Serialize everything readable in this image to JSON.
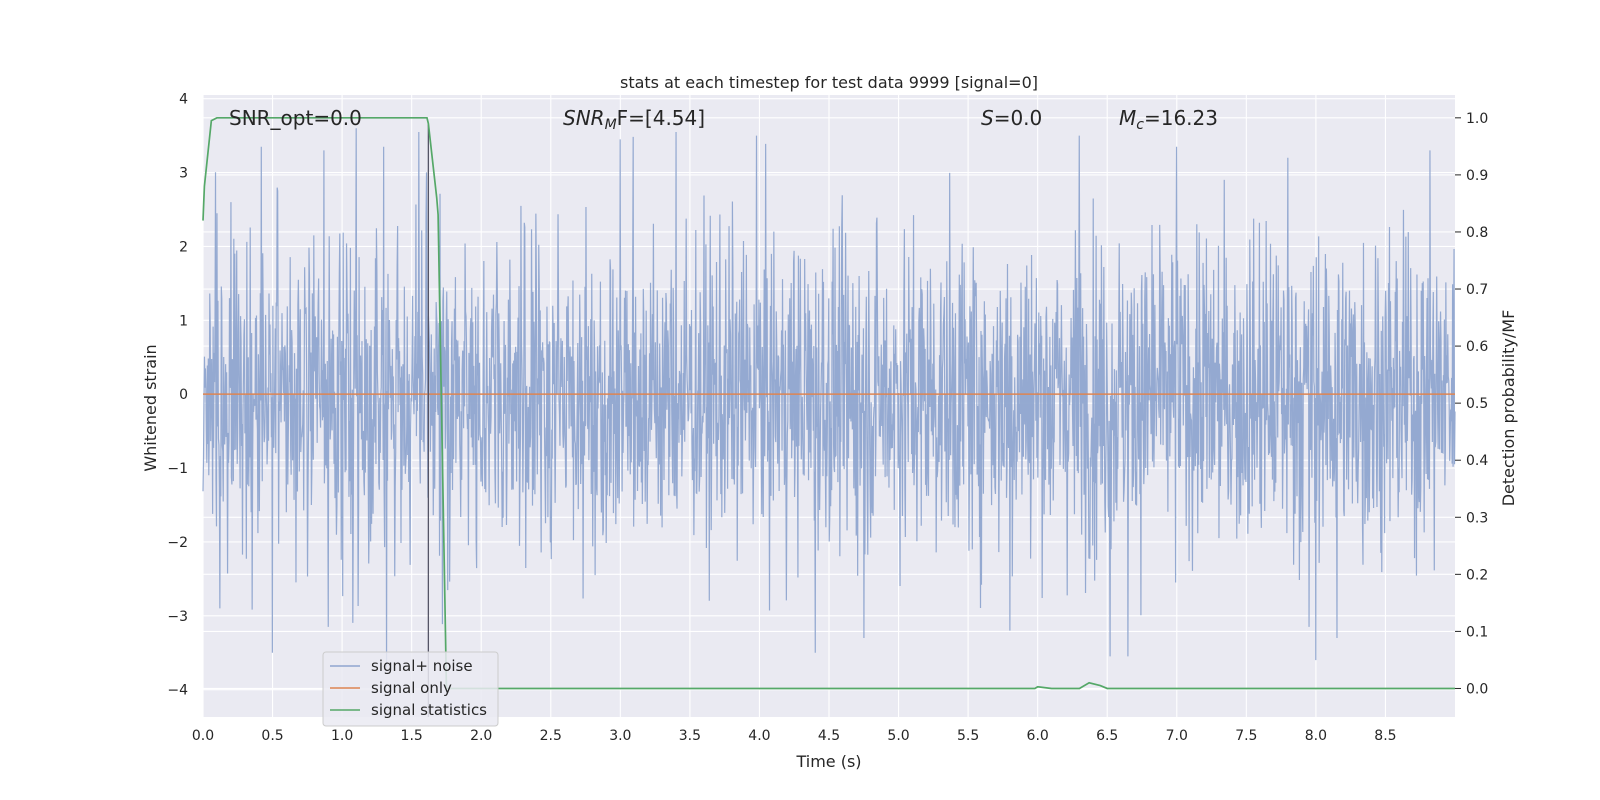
{
  "chart_data": {
    "type": "line",
    "title": "stats at each timestep for test data 9999 [signal=0]",
    "xlabel": "Time (s)",
    "ylabel": "Whitened strain",
    "y2label": "Detection probability/MF",
    "xlim": [
      0.0,
      9.0
    ],
    "ylim": [
      -4.37,
      4.05
    ],
    "y2lim": [
      -0.05,
      1.04
    ],
    "grid": true,
    "legend_position": "lower-left",
    "x_ticks": [
      "0.0",
      "0.5",
      "1.0",
      "1.5",
      "2.0",
      "2.5",
      "3.0",
      "3.5",
      "4.0",
      "4.5",
      "5.0",
      "5.5",
      "6.0",
      "6.5",
      "7.0",
      "7.5",
      "8.0",
      "8.5"
    ],
    "x_tick_values": [
      0.0,
      0.5,
      1.0,
      1.5,
      2.0,
      2.5,
      3.0,
      3.5,
      4.0,
      4.5,
      5.0,
      5.5,
      6.0,
      6.5,
      7.0,
      7.5,
      8.0,
      8.5
    ],
    "y_ticks": [
      "4",
      "3",
      "2",
      "1",
      "0",
      "−1",
      "−2",
      "−3",
      "−4"
    ],
    "y_tick_values": [
      4,
      3,
      2,
      1,
      0,
      -1,
      -2,
      -3,
      -4
    ],
    "y2_ticks": [
      "1.0",
      "0.9",
      "0.8",
      "0.7",
      "0.6",
      "0.5",
      "0.4",
      "0.3",
      "0.2",
      "0.1",
      "0.0"
    ],
    "y2_tick_values": [
      1.0,
      0.9,
      0.8,
      0.7,
      0.6,
      0.5,
      0.4,
      0.3,
      0.2,
      0.1,
      0.0
    ],
    "annotations": {
      "snr_opt": "SNR_opt=0.0",
      "snr_mf_label": "SNR",
      "snr_mf_sub": "M",
      "snr_mf_rest": "F=[4.54]",
      "s_label": "S",
      "s_rest": "=0.0",
      "mc_label": "M",
      "mc_sub": "c",
      "mc_rest": "=16.23"
    },
    "vline_x": 1.62,
    "series": [
      {
        "name": "signal+ noise",
        "color": "#8fa5cf",
        "axis": "left",
        "description": "whitened noise-only strain, roughly Gaussian, peaks near ±3.5",
        "peaks": [
          {
            "x": 0.1,
            "y": 2.45
          },
          {
            "x": 0.12,
            "y": -2.9
          },
          {
            "x": 0.2,
            "y": 2.6
          },
          {
            "x": 0.42,
            "y": 3.35
          },
          {
            "x": 0.5,
            "y": -3.5
          },
          {
            "x": 0.87,
            "y": 3.3
          },
          {
            "x": 0.9,
            "y": -3.15
          },
          {
            "x": 1.1,
            "y": 3.6
          },
          {
            "x": 1.3,
            "y": 3.35
          },
          {
            "x": 1.32,
            "y": -3.7
          },
          {
            "x": 1.55,
            "y": 3.55
          },
          {
            "x": 3.0,
            "y": 3.45
          },
          {
            "x": 3.4,
            "y": 3.55
          },
          {
            "x": 3.98,
            "y": 3.5
          },
          {
            "x": 4.4,
            "y": -3.5
          },
          {
            "x": 4.75,
            "y": -3.3
          },
          {
            "x": 5.8,
            "y": -3.2
          },
          {
            "x": 6.3,
            "y": 3.5
          },
          {
            "x": 6.52,
            "y": -3.55
          },
          {
            "x": 6.65,
            "y": -3.55
          },
          {
            "x": 7.0,
            "y": 3.35
          },
          {
            "x": 7.8,
            "y": 3.2
          },
          {
            "x": 7.95,
            "y": -3.15
          },
          {
            "x": 8.0,
            "y": -3.6
          },
          {
            "x": 8.15,
            "y": -3.3
          },
          {
            "x": 8.82,
            "y": 3.3
          }
        ],
        "typical_amplitude": 1.7
      },
      {
        "name": "signal only",
        "color": "#dd8452",
        "axis": "left",
        "x": [
          0.0,
          9.0
        ],
        "y": [
          0.0,
          0.0
        ]
      },
      {
        "name": "signal statistics",
        "color": "#55a868",
        "axis": "right",
        "x": [
          0.0,
          0.01,
          0.06,
          0.1,
          0.2,
          0.5,
          1.0,
          1.5,
          1.61,
          1.62,
          1.68,
          1.69,
          1.75,
          1.8,
          2.0,
          3.0,
          4.0,
          5.0,
          5.98,
          6.0,
          6.1,
          6.3,
          6.37,
          6.45,
          6.5,
          7.0,
          8.0,
          9.0
        ],
        "y": [
          0.82,
          0.88,
          0.995,
          1.0,
          1.0,
          1.0,
          1.0,
          1.0,
          1.0,
          0.99,
          0.86,
          0.83,
          0.0,
          0.0,
          0.0,
          0.0,
          0.0,
          0.0,
          0.0,
          0.003,
          0.0,
          0.0,
          0.01,
          0.005,
          0.0,
          0.0,
          0.0,
          0.0
        ]
      }
    ]
  }
}
